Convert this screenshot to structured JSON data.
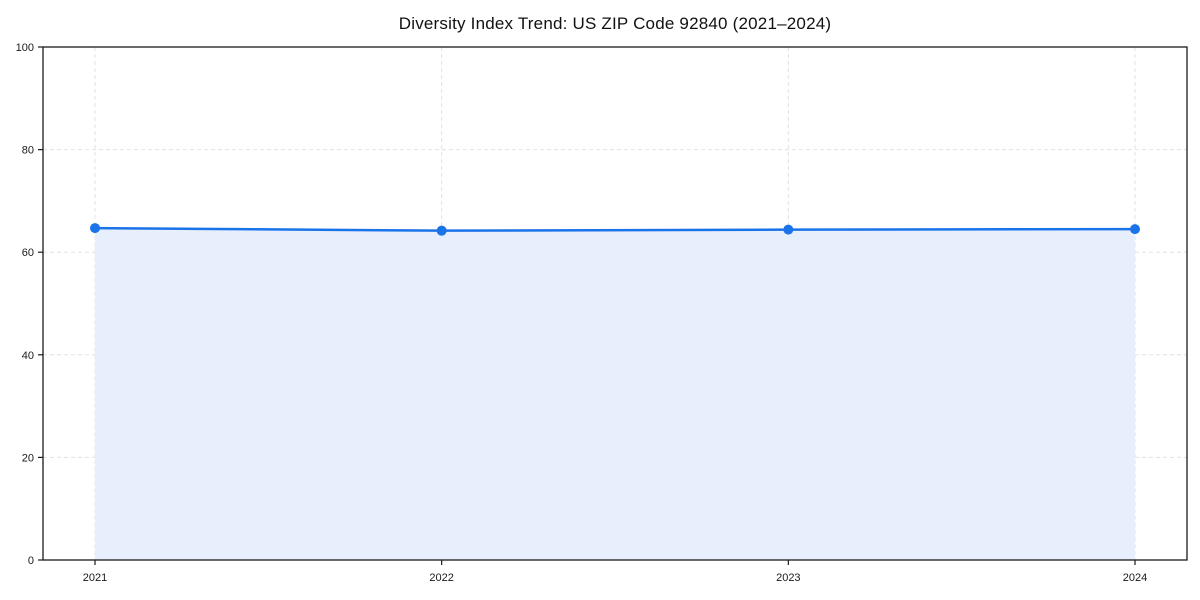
{
  "chart_data": {
    "type": "area",
    "title": "Diversity Index Trend: US ZIP Code 92840 (2021–2024)",
    "categories": [
      "2021",
      "2022",
      "2023",
      "2024"
    ],
    "series": [
      {
        "name": "Diversity Index",
        "values": [
          64.7,
          64.2,
          64.4,
          64.5
        ]
      }
    ],
    "xlabel": "",
    "ylabel": "",
    "ylim": [
      0,
      100
    ],
    "yticks": [
      0,
      20,
      40,
      60,
      80,
      100
    ],
    "grid": "dashed-both-axes",
    "legend_position": "none",
    "colors": {
      "line": "#1a73e8",
      "marker": "#1a73e8",
      "area_fill": "#e7effc",
      "gridline": "#e2e2e2",
      "axis_frame": "#1a1a1a",
      "tick_label": "#1a1a1a",
      "background": "#ffffff"
    }
  }
}
